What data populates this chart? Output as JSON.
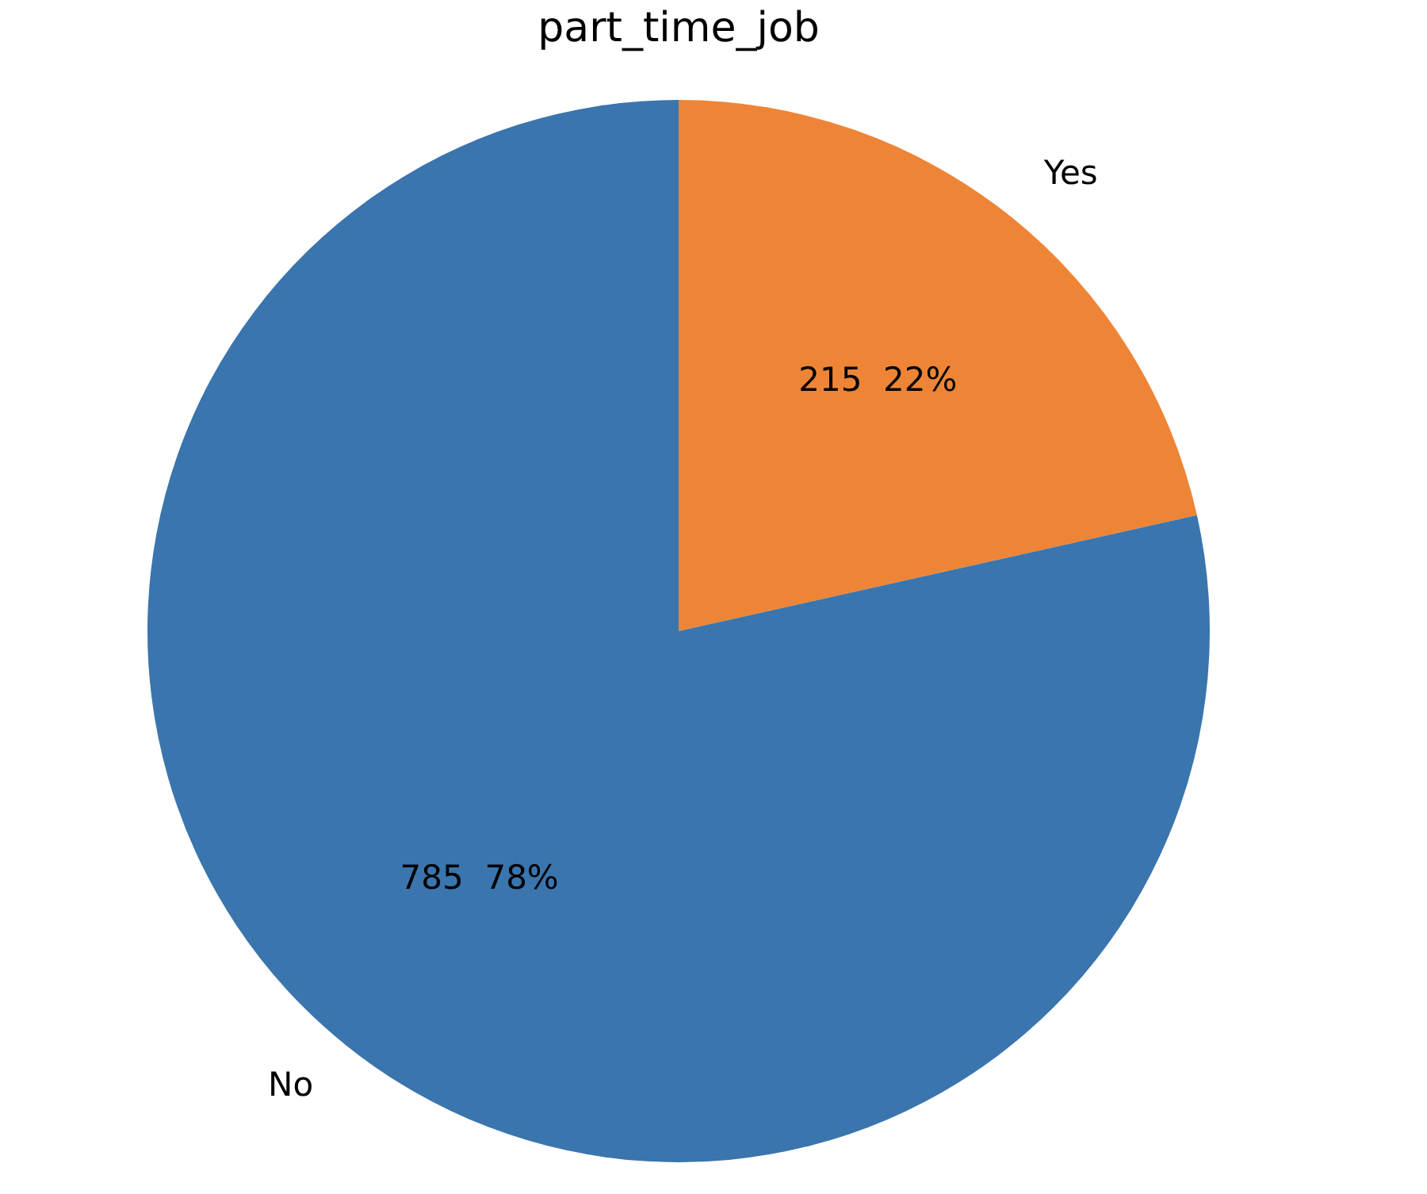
{
  "chart_data": {
    "type": "pie",
    "title": "part_time_job",
    "categories": [
      "Yes",
      "No"
    ],
    "values": [
      215,
      785
    ],
    "colors": [
      "#ee8536",
      "#3a75ad"
    ],
    "value_labels": [
      "215  22%",
      "785  78%"
    ]
  }
}
